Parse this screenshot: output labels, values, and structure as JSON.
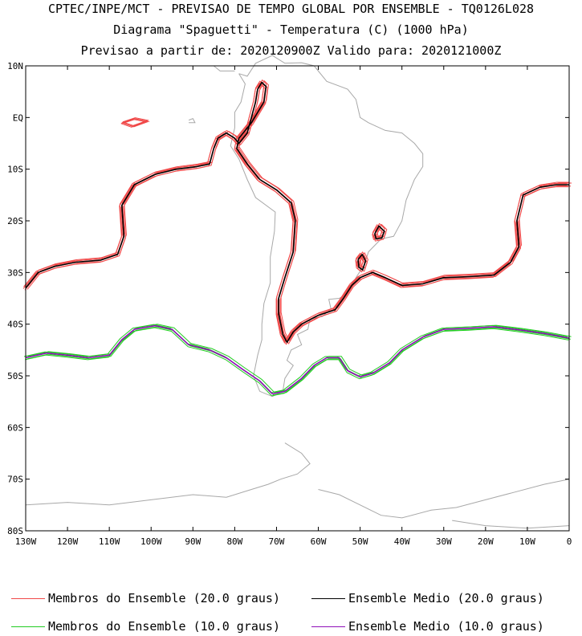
{
  "header": {
    "line1": "CPTEC/INPE/MCT - PREVISAO DE TEMPO GLOBAL POR ENSEMBLE - TQ0126L028",
    "line2": "Diagrama \"Spaguetti\" - Temperatura (C) (1000 hPa)",
    "line3": "Previsao a partir de: 2020120900Z  Valido para: 2020121000Z"
  },
  "chart_data": {
    "type": "line",
    "projection": "lat-lon",
    "xlim": [
      -130,
      0
    ],
    "ylim": [
      -80,
      10
    ],
    "x_ticks": [
      "130W",
      "120W",
      "110W",
      "100W",
      "90W",
      "80W",
      "70W",
      "60W",
      "50W",
      "40W",
      "30W",
      "20W",
      "10W",
      "0"
    ],
    "y_ticks": [
      "10N",
      "EQ",
      "10S",
      "20S",
      "30S",
      "40S",
      "50S",
      "60S",
      "70S",
      "80S"
    ],
    "colors": {
      "members_20": "#f04848",
      "mean_20": "#000000",
      "members_10": "#22cc22",
      "mean_10": "#9010b8",
      "coast": "#a8a8a8"
    },
    "series": [
      {
        "name": "Ensemble Medio (20.0 graus)",
        "level": 20,
        "points": [
          [
            -130,
            -33
          ],
          [
            -127,
            -30
          ],
          [
            -123,
            -28.8
          ],
          [
            -118,
            -28
          ],
          [
            -112,
            -27.6
          ],
          [
            -108,
            -26.5
          ],
          [
            -106.5,
            -23
          ],
          [
            -107,
            -17
          ],
          [
            -104,
            -13
          ],
          [
            -99,
            -11
          ],
          [
            -94,
            -10
          ],
          [
            -89,
            -9.5
          ],
          [
            -86,
            -9
          ],
          [
            -85,
            -6
          ],
          [
            -84,
            -4
          ],
          [
            -82,
            -3
          ],
          [
            -80,
            -4
          ],
          [
            -79,
            -5
          ],
          [
            -77,
            -3
          ],
          [
            -76,
            0
          ],
          [
            -75,
            3
          ],
          [
            -74.5,
            5.5
          ],
          [
            -73.5,
            6.8
          ],
          [
            -72.5,
            6
          ],
          [
            -73,
            3
          ],
          [
            -76,
            -1
          ],
          [
            -79,
            -4
          ],
          [
            -79.5,
            -6
          ],
          [
            -77,
            -9
          ],
          [
            -74,
            -12
          ],
          [
            -70,
            -14
          ],
          [
            -66.5,
            -16.5
          ],
          [
            -65.5,
            -20
          ],
          [
            -66,
            -26
          ],
          [
            -68,
            -31
          ],
          [
            -69.5,
            -35
          ],
          [
            -69.5,
            -38
          ],
          [
            -68.5,
            -42
          ],
          [
            -67.5,
            -43.5
          ],
          [
            -66,
            -41.5
          ],
          [
            -64,
            -40
          ],
          [
            -60,
            -38.3
          ],
          [
            -56,
            -37.2
          ],
          [
            -54,
            -35
          ],
          [
            -52,
            -32.5
          ],
          [
            -50,
            -31
          ],
          [
            -47,
            -30
          ],
          [
            -44,
            -31
          ],
          [
            -40,
            -32.5
          ],
          [
            -35,
            -32.2
          ],
          [
            -30,
            -31
          ],
          [
            -24,
            -30.8
          ],
          [
            -18,
            -30.5
          ],
          [
            -14,
            -28
          ],
          [
            -12,
            -25
          ],
          [
            -12.5,
            -20
          ],
          [
            -11,
            -15
          ],
          [
            -7,
            -13.5
          ],
          [
            -3,
            -13
          ],
          [
            0,
            -13
          ]
        ]
      },
      {
        "name": "Ensemble Medio (20.0 graus) - island 1",
        "level": 20,
        "points": [
          [
            -46.5,
            -22.5
          ],
          [
            -45.5,
            -21
          ],
          [
            -44.2,
            -22
          ],
          [
            -44.8,
            -23.3
          ],
          [
            -46.2,
            -23.5
          ],
          [
            -46.5,
            -22.5
          ]
        ]
      },
      {
        "name": "Ensemble Medio (20.0 graus) - island 2",
        "level": 20,
        "points": [
          [
            -50.5,
            -27.5
          ],
          [
            -49.5,
            -26.5
          ],
          [
            -48.7,
            -27.8
          ],
          [
            -49.4,
            -29.5
          ],
          [
            -50.3,
            -29
          ],
          [
            -50.5,
            -27.5
          ]
        ]
      },
      {
        "name": "Ensemble Medio (10.0 graus)",
        "level": 10,
        "points": [
          [
            -130,
            -46.5
          ],
          [
            -125,
            -45.6
          ],
          [
            -120,
            -46
          ],
          [
            -115,
            -46.5
          ],
          [
            -110,
            -46
          ],
          [
            -107,
            -43
          ],
          [
            -104,
            -41
          ],
          [
            -99,
            -40.3
          ],
          [
            -95,
            -41
          ],
          [
            -91,
            -44
          ],
          [
            -86,
            -45
          ],
          [
            -82,
            -46.5
          ],
          [
            -78,
            -48.8
          ],
          [
            -74,
            -51
          ],
          [
            -71,
            -53.5
          ],
          [
            -68,
            -53
          ],
          [
            -64,
            -50.5
          ],
          [
            -61,
            -48
          ],
          [
            -58,
            -46.5
          ],
          [
            -55,
            -46.5
          ],
          [
            -53,
            -49
          ],
          [
            -50,
            -50.2
          ],
          [
            -47,
            -49.5
          ],
          [
            -43,
            -47.5
          ],
          [
            -40,
            -45
          ],
          [
            -35,
            -42.5
          ],
          [
            -30,
            -41
          ],
          [
            -24,
            -40.8
          ],
          [
            -18,
            -40.5
          ],
          [
            -12,
            -41.1
          ],
          [
            -6,
            -41.8
          ],
          [
            0,
            -42.7
          ]
        ]
      }
    ]
  },
  "legend": {
    "members_20": "Membros do Ensemble (20.0 graus)",
    "mean_20": "Ensemble Medio (20.0 graus)",
    "members_10": "Membros do Ensemble (10.0 graus)",
    "mean_10": "Ensemble Medio (10.0 graus)"
  }
}
